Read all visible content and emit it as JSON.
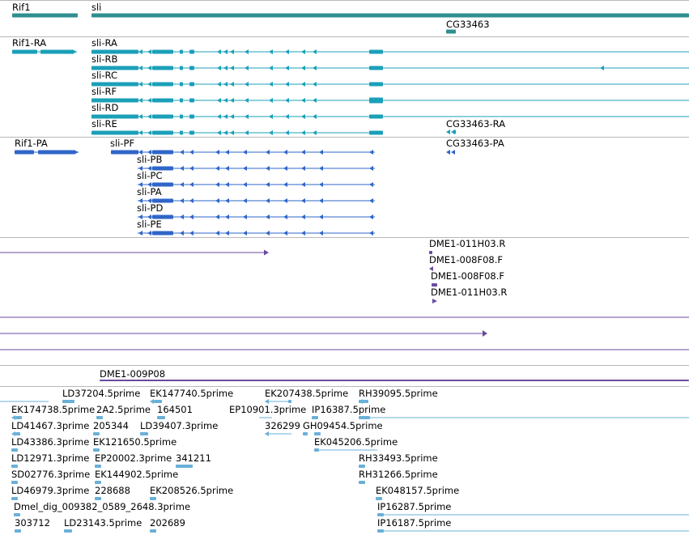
{
  "colors": {
    "gene": "#2f8f8f",
    "transcript": "#1ba0b8",
    "protein": "#2f66c8",
    "sequence": "#6a4aa0",
    "est": "#6ab0d8",
    "divider": "#b8b8b8"
  },
  "genes": {
    "rif1": "Rif1",
    "sli": "sli",
    "cg33463": "CG33463"
  },
  "transcripts": {
    "rif1_ra": "Rif1-RA",
    "sli_ra": "sli-RA",
    "sli_rb": "sli-RB",
    "sli_rc": "sli-RC",
    "sli_rf": "sli-RF",
    "sli_rd": "sli-RD",
    "sli_re": "sli-RE",
    "cg33463_ra": "CG33463-RA"
  },
  "proteins": {
    "rif1_pa": "Rif1-PA",
    "sli_pf": "sli-PF",
    "sli_pb": "sli-PB",
    "sli_pc": "sli-PC",
    "sli_pa": "sli-PA",
    "sli_pd": "sli-PD",
    "sli_pe": "sli-PE",
    "cg33463_pa": "CG33463-PA"
  },
  "sequences": {
    "s1": "DME1-011H03.R",
    "s2": "DME1-008F08.F",
    "s3": "DME1-008F08.F",
    "s4": "DME1-011H03.R",
    "s5": "DME1-009P08"
  },
  "ests": [
    "LD37204.5prime",
    "EK147740.5prime",
    "EK207438.5prime",
    "RH39095.5prime",
    "EK174738.5prime",
    "2A2.5prime",
    "164501",
    "EP10901.3prime",
    "IP16387.5prime",
    "LD41467.3prime",
    "205344",
    "LD39407.3prime",
    "326299",
    "GH09454.5prime",
    "LD43386.3prime",
    "EK121650.5prime",
    "EK045206.5prime",
    "LD12971.3prime",
    "EP20002.3prime",
    "341211",
    "RH33493.5prime",
    "SD02776.3prime",
    "EK144902.5prime",
    "RH31266.5prime",
    "LD46979.3prime",
    "228688",
    "EK208526.5prime",
    "EK048157.5prime",
    "Dmel_dig_009382_0589_2648.3prime",
    "IP16287.5prime",
    "303712",
    "LD23143.5prime",
    "202689",
    "IP16187.5prime"
  ]
}
